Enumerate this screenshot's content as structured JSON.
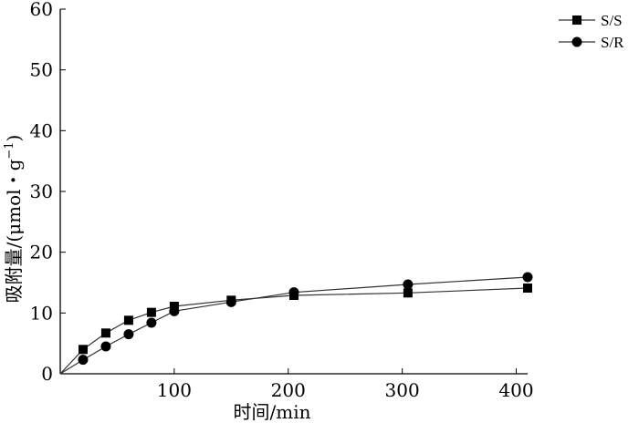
{
  "chart_data": {
    "type": "line",
    "xlabel": "时间/min",
    "ylabel_main": "吸附量/(μmol・g",
    "ylabel_sup": "−1",
    "ylabel_end": ")",
    "xlim": [
      0,
      410
    ],
    "ylim": [
      0,
      60
    ],
    "xticks": [
      "100",
      "200",
      "300",
      "400"
    ],
    "yticks": [
      "0",
      "10",
      "20",
      "30",
      "40",
      "50",
      "60"
    ],
    "grid": false,
    "legend_position": "top-right",
    "series": [
      {
        "name": "S/S",
        "marker": "square",
        "color": "#000000",
        "x": [
          0,
          20,
          40,
          60,
          80,
          100,
          150,
          205,
          305,
          410
        ],
        "y": [
          0,
          4.0,
          6.7,
          8.8,
          10.1,
          11.1,
          12.1,
          12.9,
          13.3,
          14.1
        ]
      },
      {
        "name": "S/R",
        "marker": "circle",
        "color": "#000000",
        "x": [
          0,
          20,
          40,
          60,
          80,
          100,
          150,
          205,
          305,
          410
        ],
        "y": [
          0,
          2.3,
          4.5,
          6.5,
          8.4,
          10.3,
          11.8,
          13.4,
          14.7,
          15.9
        ]
      }
    ]
  }
}
